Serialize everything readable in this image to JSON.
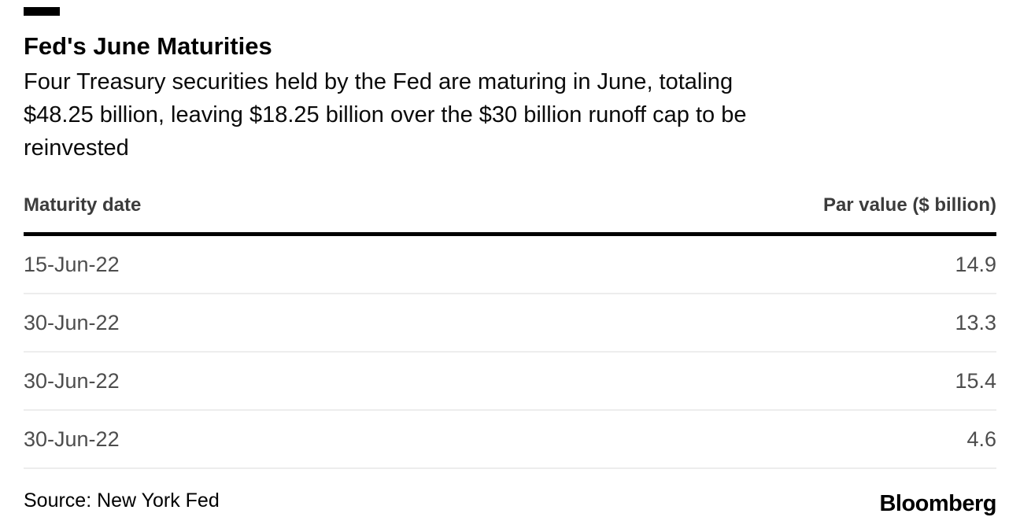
{
  "colors": {
    "background": "#ffffff",
    "brand_bar": "#000000",
    "title_text": "#000000",
    "header_text": "#3c3c3c",
    "row_text": "#4d4d4d",
    "header_rule": "#000000",
    "row_separator": "#ededed"
  },
  "header": {
    "title": "Fed's June Maturities",
    "subtitle_lines": [
      "Four Treasury securities held by the Fed are maturing in June, totaling",
      "$48.25 billion, leaving $18.25 billion over the $30 billion runoff cap to be",
      "reinvested"
    ]
  },
  "table": {
    "col_maturity": "Maturity date",
    "col_par_value": "Par value ($ billion)",
    "rows": [
      {
        "date": "15-Jun-22",
        "value": "14.9"
      },
      {
        "date": "30-Jun-22",
        "value": "13.3"
      },
      {
        "date": "30-Jun-22",
        "value": "15.4"
      },
      {
        "date": "30-Jun-22",
        "value": "4.6"
      }
    ]
  },
  "footer": {
    "source": "Source: New York Fed",
    "brand": "Bloomberg"
  },
  "chart_data": {
    "type": "table",
    "title": "Fed's June Maturities",
    "subtitle": "Four Treasury securities held by the Fed are maturing in June, totaling $48.25 billion, leaving $18.25 billion over the $30 billion runoff cap to be reinvested",
    "columns": [
      "Maturity date",
      "Par value ($ billion)"
    ],
    "rows": [
      [
        "15-Jun-22",
        14.9
      ],
      [
        "30-Jun-22",
        13.3
      ],
      [
        "30-Jun-22",
        15.4
      ],
      [
        "30-Jun-22",
        4.6
      ]
    ],
    "totals_mentioned": {
      "total_maturing_billion": 48.25,
      "over_cap_billion": 18.25,
      "runoff_cap_billion": 30
    },
    "source": "Source: New York Fed"
  }
}
